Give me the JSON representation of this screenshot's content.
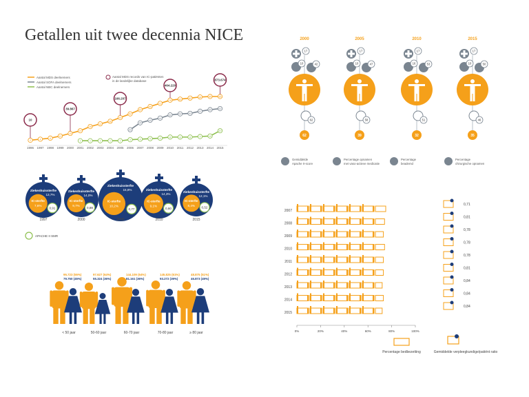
{
  "title": "Getallen uit twee decennia NICE",
  "colors": {
    "orange": "#f5a01a",
    "navy": "#1d3d7a",
    "grey": "#7a8590",
    "green": "#8dbf4e",
    "purple": "#8a2a4a",
    "lightgrey": "#b8c0c8"
  },
  "line_chart": {
    "legend": [
      "Aantal MDS deelnemers",
      "Aantal SOFA deelnemers",
      "Aantal NBC deelnemers"
    ],
    "record_legend": "Aantal MDS records van IC-patiënten in de landelijke database",
    "years": [
      "1996",
      "1997",
      "1998",
      "1999",
      "2000",
      "2001",
      "2002",
      "2003",
      "2004",
      "2005",
      "2006",
      "2007",
      "2008",
      "2009",
      "2010",
      "2011",
      "2012",
      "2013",
      "2014",
      "2015"
    ],
    "mds_nodes": [
      "2",
      "4",
      "6",
      "10",
      "15",
      "20",
      "28",
      "33",
      "38",
      "45",
      "52",
      "60",
      "66",
      "72",
      "78",
      "80",
      "82",
      "84",
      "85",
      "85"
    ],
    "sofa_nodes": [
      "",
      "",
      "",
      "",
      "",
      "",
      "",
      "",
      "",
      "",
      "22",
      "35",
      "40",
      "44",
      "50",
      "52",
      "53",
      "57",
      "60",
      "62"
    ],
    "nbc_nodes": [
      "",
      "",
      "",
      "",
      "",
      "1",
      "1",
      "1",
      "1",
      "1",
      "3",
      "4",
      "5",
      "6",
      "8",
      "8",
      "8",
      "9",
      "10",
      "20"
    ],
    "records": [
      "10",
      "39.867",
      "166.207",
      "464.220",
      "873.674"
    ]
  },
  "circles": {
    "years": [
      "1997",
      "2000",
      "2005",
      "2010",
      "2015"
    ],
    "ziek_label": "Ziekenhuissterfte",
    "ic_label": "IC-sterfte",
    "ziek_values": [
      "13,7%",
      "14,0%",
      "15,8%",
      "14,3%",
      "12,1%"
    ],
    "ic_values": [
      "7,6%",
      "9,7%",
      "10,2%",
      "9,1%",
      "8,4%"
    ],
    "smr": [
      "0,91",
      "0,88",
      "0,77",
      "0,60",
      "0,52"
    ],
    "smr_label": "APACHE II SMR"
  },
  "age_groups": {
    "labels": [
      "< 50 jaar",
      "50-60 jaar",
      "60-70 jaar",
      "70-80 jaar",
      "≥ 80 jaar"
    ],
    "male": [
      "95.723 (55%)",
      "97.627 (64%)",
      "144.109 (64%)",
      "145.825 (61%)",
      "48.875 (51%)"
    ],
    "female": [
      "79.750 (45%)",
      "55.324 (36%)",
      "81.161 (36%)",
      "93.272 (39%)",
      "46.873 (49%)"
    ]
  },
  "year_patients": {
    "years": [
      "2000",
      "2005",
      "2010",
      "2015"
    ],
    "apache": [
      "17",
      "17",
      "17",
      "17"
    ],
    "vaso": [
      "10",
      "10",
      "16",
      "10"
    ],
    "beademd": [
      "62",
      "58",
      "51",
      "46"
    ],
    "chir": [
      "42",
      "47",
      "53",
      "50"
    ],
    "bottom": [
      "62",
      "39",
      "32",
      "35"
    ],
    "legend": [
      "Gemiddelde Apache II-score",
      "Percentage opnamen met vaso-actieve medicatie",
      "Percentage beademd",
      "Percentage chirurgische opnamen"
    ]
  },
  "bed_chart": {
    "years": [
      "2007",
      "2008",
      "2009",
      "2010",
      "2011",
      "2012",
      "2013",
      "2014",
      "2015"
    ],
    "occupancy": [
      75,
      74,
      73,
      74,
      73,
      73,
      72,
      73,
      72
    ],
    "axis_ticks": [
      "0%",
      "20%",
      "40%",
      "60%",
      "80%",
      "100%"
    ],
    "ratios": [
      "0,71",
      "0,81",
      "0,78",
      "0,78",
      "0,78",
      "0,81",
      "0,84",
      "0,84",
      "0,84"
    ],
    "legend_bed": "Percentage bedbezetting",
    "legend_ratio": "Gemiddelde verpleegkundige/patiënt ratio"
  },
  "chart_data": [
    {
      "type": "line",
      "title": "",
      "x": [
        "1996",
        "1997",
        "1998",
        "1999",
        "2000",
        "2001",
        "2002",
        "2003",
        "2004",
        "2005",
        "2006",
        "2007",
        "2008",
        "2009",
        "2010",
        "2011",
        "2012",
        "2013",
        "2014",
        "2015"
      ],
      "series": [
        {
          "name": "Aantal MDS deelnemers",
          "values": [
            2,
            4,
            6,
            10,
            15,
            20,
            28,
            33,
            38,
            45,
            52,
            60,
            66,
            72,
            78,
            80,
            82,
            84,
            85,
            85
          ]
        },
        {
          "name": "Aantal SOFA deelnemers",
          "values": [
            null,
            null,
            null,
            null,
            null,
            null,
            null,
            null,
            null,
            null,
            22,
            35,
            40,
            44,
            50,
            52,
            53,
            57,
            60,
            62
          ]
        },
        {
          "name": "Aantal NBC deelnemers",
          "values": [
            null,
            null,
            null,
            null,
            null,
            1,
            1,
            1,
            1,
            1,
            3,
            4,
            5,
            6,
            8,
            8,
            8,
            9,
            10,
            20
          ]
        }
      ]
    },
    {
      "type": "bar",
      "categories": [
        "2007",
        "2008",
        "2009",
        "2010",
        "2011",
        "2012",
        "2013",
        "2014",
        "2015"
      ],
      "values": [
        75,
        74,
        73,
        74,
        73,
        73,
        72,
        73,
        72
      ],
      "xlabel": "Percentage bedbezetting",
      "xlim": [
        0,
        100
      ]
    }
  ]
}
